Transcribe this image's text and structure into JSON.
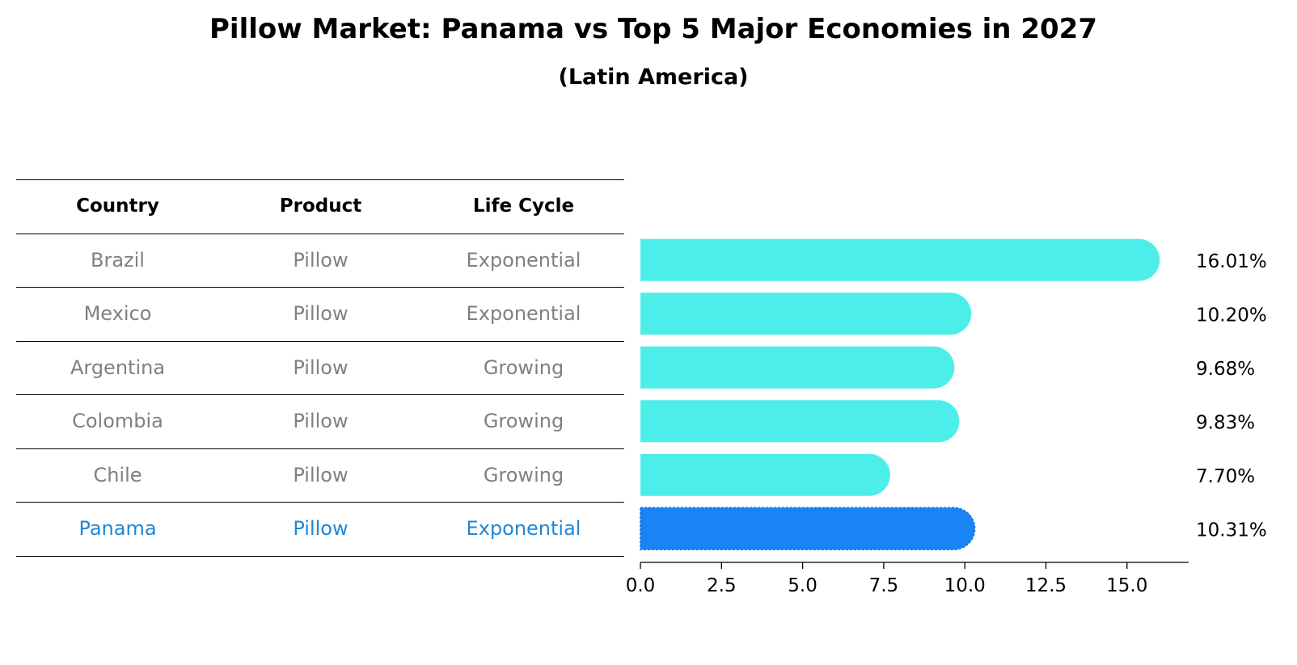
{
  "title": "Pillow Market: Panama vs Top 5 Major Economies in 2027",
  "subtitle": "(Latin America)",
  "table": {
    "headers": [
      "Country",
      "Product",
      "Life Cycle"
    ],
    "rows": [
      [
        "Brazil",
        "Pillow",
        "Exponential"
      ],
      [
        "Mexico",
        "Pillow",
        "Exponential"
      ],
      [
        "Argentina",
        "Pillow",
        "Growing"
      ],
      [
        "Colombia",
        "Pillow",
        "Growing"
      ],
      [
        "Chile",
        "Pillow",
        "Growing"
      ],
      [
        "Panama",
        "Pillow",
        "Exponential"
      ]
    ],
    "highlight_row": 5
  },
  "chart_data": {
    "type": "bar",
    "orientation": "horizontal",
    "categories": [
      "Brazil",
      "Mexico",
      "Argentina",
      "Colombia",
      "Chile",
      "Panama"
    ],
    "values": [
      16.01,
      10.2,
      9.68,
      9.83,
      7.7,
      10.31
    ],
    "value_labels": [
      "16.01%",
      "10.20%",
      "9.68%",
      "9.83%",
      "7.70%",
      "10.31%"
    ],
    "xlim": [
      0,
      16.9
    ],
    "xticks": [
      0.0,
      2.5,
      5.0,
      7.5,
      10.0,
      12.5,
      15.0
    ],
    "xtick_labels": [
      "0.0",
      "2.5",
      "5.0",
      "7.5",
      "10.0",
      "12.5",
      "15.0"
    ],
    "highlight": "Panama",
    "colors": {
      "default": "#4deeea",
      "highlight": "#1984f5",
      "text_highlight": "#1e87d6"
    }
  }
}
